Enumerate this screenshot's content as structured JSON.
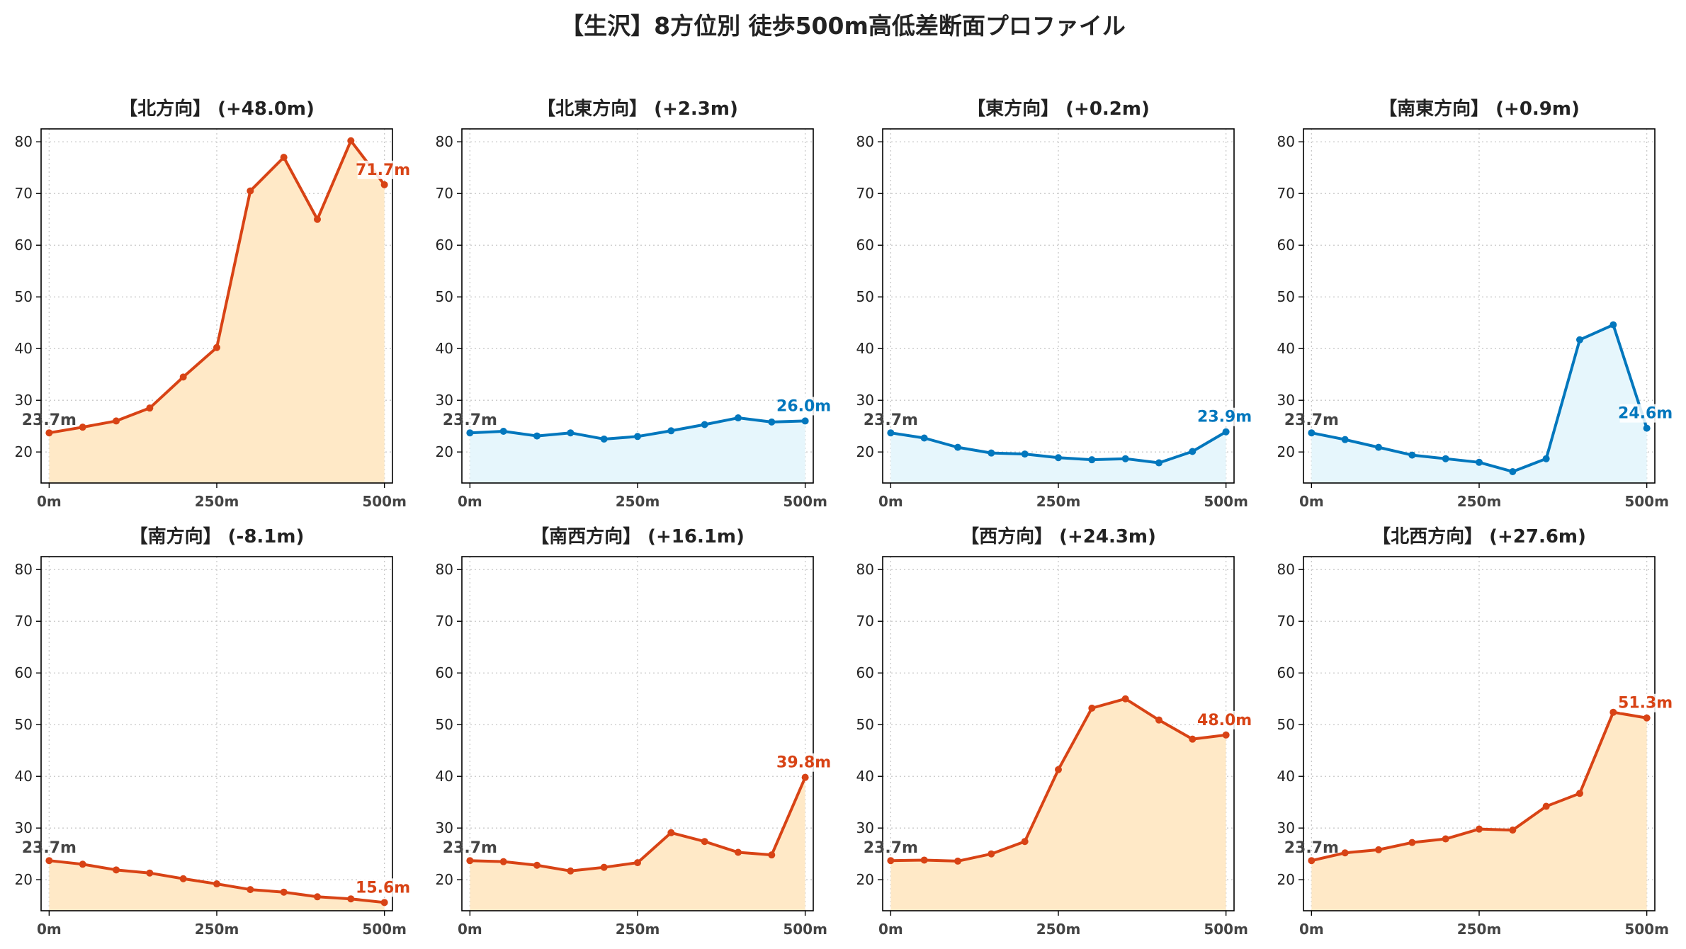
{
  "title": "【生沢】8方位別 徒歩500m高低差断面プロファイル",
  "colors": {
    "up_line": "#D84315",
    "up_fill": "#FFE9C7",
    "flat_line": "#0277BD",
    "flat_fill": "#E6F6FC",
    "grid": "#c8c8c8",
    "start_label": "#444444"
  },
  "chart_data": [
    {
      "type": "area",
      "title": "【北方向】 (+48.0m)",
      "tone": "up",
      "x": [
        0,
        50,
        100,
        150,
        200,
        250,
        300,
        350,
        400,
        450,
        500
      ],
      "y": [
        23.7,
        24.8,
        26.0,
        28.5,
        34.5,
        40.2,
        70.5,
        77.0,
        65.0,
        80.2,
        71.7
      ],
      "start_label": "23.7m",
      "end_label": "71.7m"
    },
    {
      "type": "area",
      "title": "【北東方向】 (+2.3m)",
      "tone": "flat",
      "x": [
        0,
        50,
        100,
        150,
        200,
        250,
        300,
        350,
        400,
        450,
        500
      ],
      "y": [
        23.7,
        24.0,
        23.1,
        23.7,
        22.5,
        23.0,
        24.1,
        25.3,
        26.6,
        25.8,
        26.0
      ],
      "start_label": "23.7m",
      "end_label": "26.0m"
    },
    {
      "type": "area",
      "title": "【東方向】 (+0.2m)",
      "tone": "flat",
      "x": [
        0,
        50,
        100,
        150,
        200,
        250,
        300,
        350,
        400,
        450,
        500
      ],
      "y": [
        23.7,
        22.7,
        20.9,
        19.8,
        19.6,
        18.9,
        18.5,
        18.7,
        17.9,
        20.1,
        23.9
      ],
      "start_label": "23.7m",
      "end_label": "23.9m"
    },
    {
      "type": "area",
      "title": "【南東方向】 (+0.9m)",
      "tone": "flat",
      "x": [
        0,
        50,
        100,
        150,
        200,
        250,
        300,
        350,
        400,
        450,
        500
      ],
      "y": [
        23.7,
        22.4,
        20.9,
        19.4,
        18.7,
        18.0,
        16.2,
        18.7,
        41.7,
        44.6,
        24.6
      ],
      "start_label": "23.7m",
      "end_label": "24.6m"
    },
    {
      "type": "area",
      "title": "【南方向】 (-8.1m)",
      "tone": "up",
      "x": [
        0,
        50,
        100,
        150,
        200,
        250,
        300,
        350,
        400,
        450,
        500
      ],
      "y": [
        23.7,
        23.0,
        21.9,
        21.3,
        20.2,
        19.2,
        18.1,
        17.6,
        16.7,
        16.3,
        15.6
      ],
      "start_label": "23.7m",
      "end_label": "15.6m"
    },
    {
      "type": "area",
      "title": "【南西方向】 (+16.1m)",
      "tone": "up",
      "x": [
        0,
        50,
        100,
        150,
        200,
        250,
        300,
        350,
        400,
        450,
        500
      ],
      "y": [
        23.7,
        23.5,
        22.8,
        21.7,
        22.4,
        23.3,
        29.1,
        27.4,
        25.3,
        24.8,
        39.8
      ],
      "start_label": "23.7m",
      "end_label": "39.8m"
    },
    {
      "type": "area",
      "title": "【西方向】 (+24.3m)",
      "tone": "up",
      "x": [
        0,
        50,
        100,
        150,
        200,
        250,
        300,
        350,
        400,
        450,
        500
      ],
      "y": [
        23.7,
        23.8,
        23.6,
        25.0,
        27.4,
        41.3,
        53.2,
        55.0,
        50.9,
        47.2,
        48.0
      ],
      "start_label": "23.7m",
      "end_label": "48.0m"
    },
    {
      "type": "area",
      "title": "【北西方向】 (+27.6m)",
      "tone": "up",
      "x": [
        0,
        50,
        100,
        150,
        200,
        250,
        300,
        350,
        400,
        450,
        500
      ],
      "y": [
        23.7,
        25.2,
        25.8,
        27.2,
        27.9,
        29.8,
        29.6,
        34.2,
        36.7,
        52.4,
        51.3
      ],
      "start_label": "23.7m",
      "end_label": "51.3m"
    }
  ],
  "axes": {
    "ylim": [
      14,
      82.5
    ],
    "xlim": [
      -12,
      512
    ],
    "yticks": [
      20,
      30,
      40,
      50,
      60,
      70,
      80
    ],
    "xticks": [
      0,
      250,
      500
    ],
    "xtick_labels": [
      "0m",
      "250m",
      "500m"
    ],
    "grid": true
  }
}
